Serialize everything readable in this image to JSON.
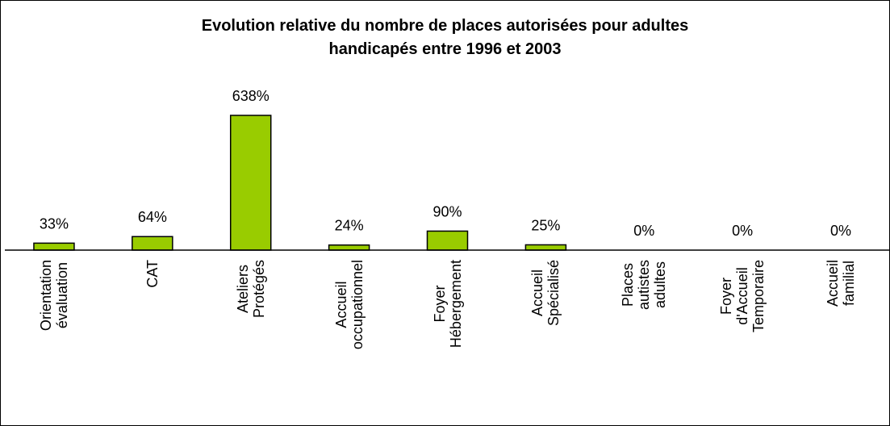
{
  "chart_data": {
    "type": "bar",
    "title": "Evolution relative du nombre de places autorisées pour adultes\nhandicapés entre 1996 et 2003",
    "categories": [
      "Orientation\névaluation",
      "CAT",
      "Ateliers\nProtégés",
      "Accueil\noccupationnel",
      "Foyer\nHébergement",
      "Accueil\nSpécialisé",
      "Places\nautistes\nadultes",
      "Foyer\nd'Accueil\nTemporaire",
      "Accueil\nfamilial"
    ],
    "values": [
      33,
      64,
      638,
      24,
      90,
      25,
      0,
      0,
      0
    ],
    "value_labels": [
      "33%",
      "64%",
      "638%",
      "24%",
      "90%",
      "25%",
      "0%",
      "0%",
      "0%"
    ],
    "color": "#99cc00"
  }
}
